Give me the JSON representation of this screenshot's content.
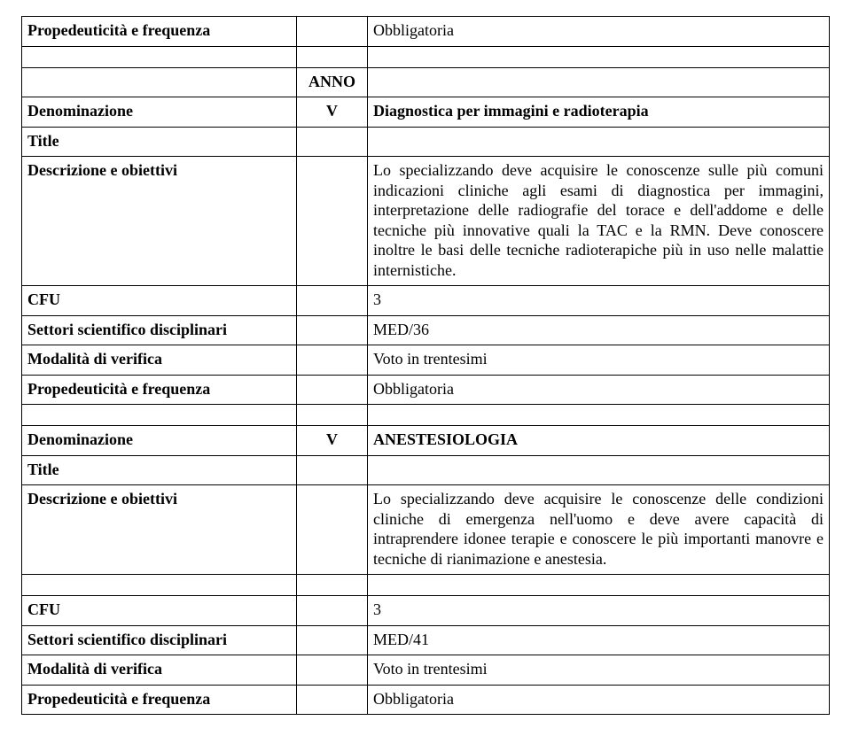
{
  "yearHeader": "ANNO",
  "labels": {
    "propedeuticita": "Propedeuticità e frequenza",
    "denominazione": "Denominazione",
    "title": "Title",
    "descrizione": "Descrizione e obiettivi",
    "cfu": "CFU",
    "ssd": "Settori scientifico disciplinari",
    "verifica": "Modalità di verifica"
  },
  "topRow": {
    "value": "Obbligatoria"
  },
  "blocks": [
    {
      "year": "V",
      "denominazione": "Diagnostica per immagini e radioterapia",
      "title": "",
      "descrizione": "Lo specializzando deve acquisire le conoscenze sulle più comuni indicazioni cliniche agli esami di diagnostica per immagini, interpretazione delle radiografie del torace e dell'addome e delle tecniche più innovative quali la TAC e la RMN. Deve conoscere inoltre le basi delle tecniche radioterapiche più in uso nelle malattie internistiche.",
      "cfu": "3",
      "ssd": "MED/36",
      "verifica": "Voto in trentesimi",
      "propedeuticita": "Obbligatoria"
    },
    {
      "year": "V",
      "denominazione": "ANESTESIOLOGIA",
      "title": "",
      "descrizione": "Lo specializzando deve acquisire le conoscenze delle condizioni cliniche di emergenza nell'uomo e deve avere capacità di intraprendere idonee terapie e conoscere le più importanti manovre e tecniche di rianimazione e anestesia.",
      "cfu": "3",
      "ssd": "MED/41",
      "verifica": "Voto in trentesimi",
      "propedeuticita": "Obbligatoria"
    }
  ]
}
